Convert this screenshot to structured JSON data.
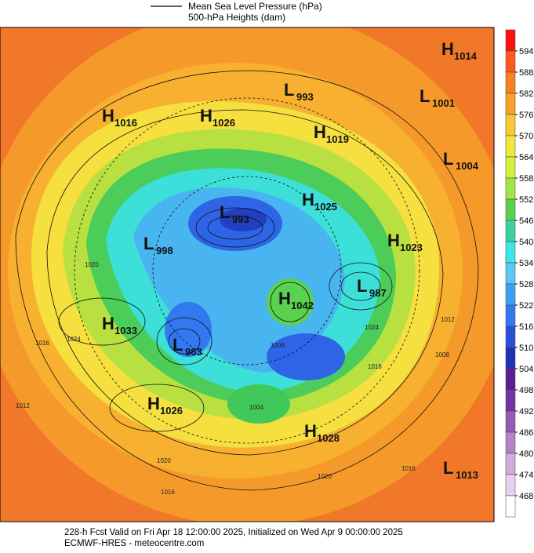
{
  "legend": {
    "items": [
      "Mean Sea Level Pressure (hPa)",
      "500-hPa Heights (dam)"
    ]
  },
  "colorbar": {
    "ticks": [
      594,
      588,
      582,
      576,
      570,
      564,
      558,
      552,
      546,
      540,
      534,
      528,
      522,
      516,
      510,
      504,
      498,
      492,
      486,
      480,
      474,
      468
    ],
    "colors": [
      "#ff1010",
      "#ff5a1e",
      "#f8801e",
      "#f8a028",
      "#fac832",
      "#f5e63c",
      "#d2f03c",
      "#a0e646",
      "#5ad250",
      "#3cd2a0",
      "#3ce6e6",
      "#5ac8f5",
      "#3ca0f5",
      "#3278f0",
      "#2850dc",
      "#1e32b4",
      "#5a1e96",
      "#7832a0",
      "#965ab4",
      "#b482c8",
      "#d2aadc",
      "#e6d2ee",
      "#ffffff"
    ]
  },
  "systems": [
    {
      "label": "H",
      "value": 1014
    },
    {
      "label": "L",
      "value": 1001
    },
    {
      "label": "L",
      "value": 993
    },
    {
      "label": "H",
      "value": 1016
    },
    {
      "label": "H",
      "value": 1026
    },
    {
      "label": "H",
      "value": 1019
    },
    {
      "label": "L",
      "value": 1004
    },
    {
      "label": "L",
      "value": 993
    },
    {
      "label": "H",
      "value": 1025
    },
    {
      "label": "L",
      "value": 998
    },
    {
      "label": "H",
      "value": 1023
    },
    {
      "label": "L",
      "value": 987
    },
    {
      "label": "H",
      "value": 1042
    },
    {
      "label": "H",
      "value": 1033
    },
    {
      "label": "L",
      "value": 983
    },
    {
      "label": "H",
      "value": 1026
    },
    {
      "label": "H",
      "value": 1028
    },
    {
      "label": "L",
      "value": 1013
    }
  ],
  "contour_labels": [
    1016,
    1024,
    1012,
    1020,
    1016,
    1008,
    1012,
    1016,
    1024,
    1004,
    1020,
    1016,
    1008,
    1020
  ],
  "footer": {
    "line1": "228-h Fcst Valid on Fri Apr 18 12:00:00 2025, Initialized on Wed Apr  9 00:00:00 2025",
    "line2": "ECMWF-HRES  - meteocentre.com"
  }
}
